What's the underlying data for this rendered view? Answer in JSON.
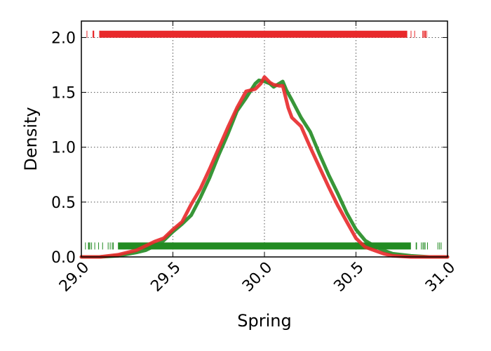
{
  "chart_data": {
    "type": "line",
    "title": "",
    "xlabel": "Spring",
    "ylabel": "Density",
    "xlim": [
      29.0,
      31.0
    ],
    "ylim": [
      0.0,
      2.15
    ],
    "xticks": [
      29.0,
      29.5,
      30.0,
      30.5,
      31.0
    ],
    "xtick_labels": [
      "29.0",
      "29.5",
      "30.0",
      "30.5",
      "31.0"
    ],
    "yticks": [
      0.0,
      0.5,
      1.0,
      1.5,
      2.0
    ],
    "ytick_labels": [
      "0.0",
      "0.5",
      "1.0",
      "1.5",
      "2.0"
    ],
    "grid": true,
    "legend": "none",
    "series": [
      {
        "color": "#228B22",
        "kind": "density",
        "x": [
          29.0,
          29.1,
          29.2,
          29.3,
          29.35,
          29.4,
          29.45,
          29.5,
          29.55,
          29.6,
          29.65,
          29.7,
          29.75,
          29.8,
          29.85,
          29.9,
          29.95,
          29.97,
          30.0,
          30.03,
          30.05,
          30.08,
          30.1,
          30.12,
          30.15,
          30.2,
          30.25,
          30.3,
          30.35,
          30.4,
          30.45,
          30.5,
          30.55,
          30.6,
          30.65,
          30.7,
          30.8,
          30.9,
          31.0
        ],
        "y": [
          0.0,
          0.0,
          0.01,
          0.04,
          0.06,
          0.1,
          0.15,
          0.23,
          0.3,
          0.38,
          0.54,
          0.72,
          0.93,
          1.12,
          1.33,
          1.45,
          1.58,
          1.61,
          1.6,
          1.58,
          1.55,
          1.58,
          1.6,
          1.52,
          1.43,
          1.27,
          1.14,
          0.94,
          0.75,
          0.58,
          0.4,
          0.25,
          0.15,
          0.1,
          0.06,
          0.03,
          0.01,
          0.0,
          0.0
        ]
      },
      {
        "color": "#E8292B",
        "kind": "density",
        "x": [
          29.0,
          29.1,
          29.2,
          29.25,
          29.3,
          29.35,
          29.4,
          29.45,
          29.5,
          29.55,
          29.6,
          29.65,
          29.7,
          29.75,
          29.8,
          29.85,
          29.9,
          29.95,
          29.98,
          30.0,
          30.03,
          30.05,
          30.08,
          30.1,
          30.13,
          30.15,
          30.2,
          30.25,
          30.3,
          30.35,
          30.4,
          30.45,
          30.5,
          30.55,
          30.6,
          30.65,
          30.7,
          30.8,
          30.9,
          31.0
        ],
        "y": [
          0.0,
          0.0,
          0.02,
          0.04,
          0.06,
          0.1,
          0.14,
          0.17,
          0.25,
          0.32,
          0.48,
          0.62,
          0.8,
          0.99,
          1.18,
          1.36,
          1.51,
          1.53,
          1.58,
          1.64,
          1.59,
          1.57,
          1.56,
          1.56,
          1.36,
          1.27,
          1.19,
          1.0,
          0.82,
          0.64,
          0.47,
          0.32,
          0.17,
          0.09,
          0.06,
          0.03,
          0.01,
          0.0,
          0.0,
          0.0
        ]
      }
    ],
    "rugs": [
      {
        "color": "#E8292B",
        "y": 2.03,
        "x_range": [
          29.0,
          30.9
        ],
        "dense_range": [
          29.1,
          30.78
        ]
      },
      {
        "color": "#228B22",
        "y": 0.1,
        "x_range": [
          29.0,
          30.98
        ],
        "dense_range": [
          29.2,
          30.8
        ]
      }
    ]
  }
}
